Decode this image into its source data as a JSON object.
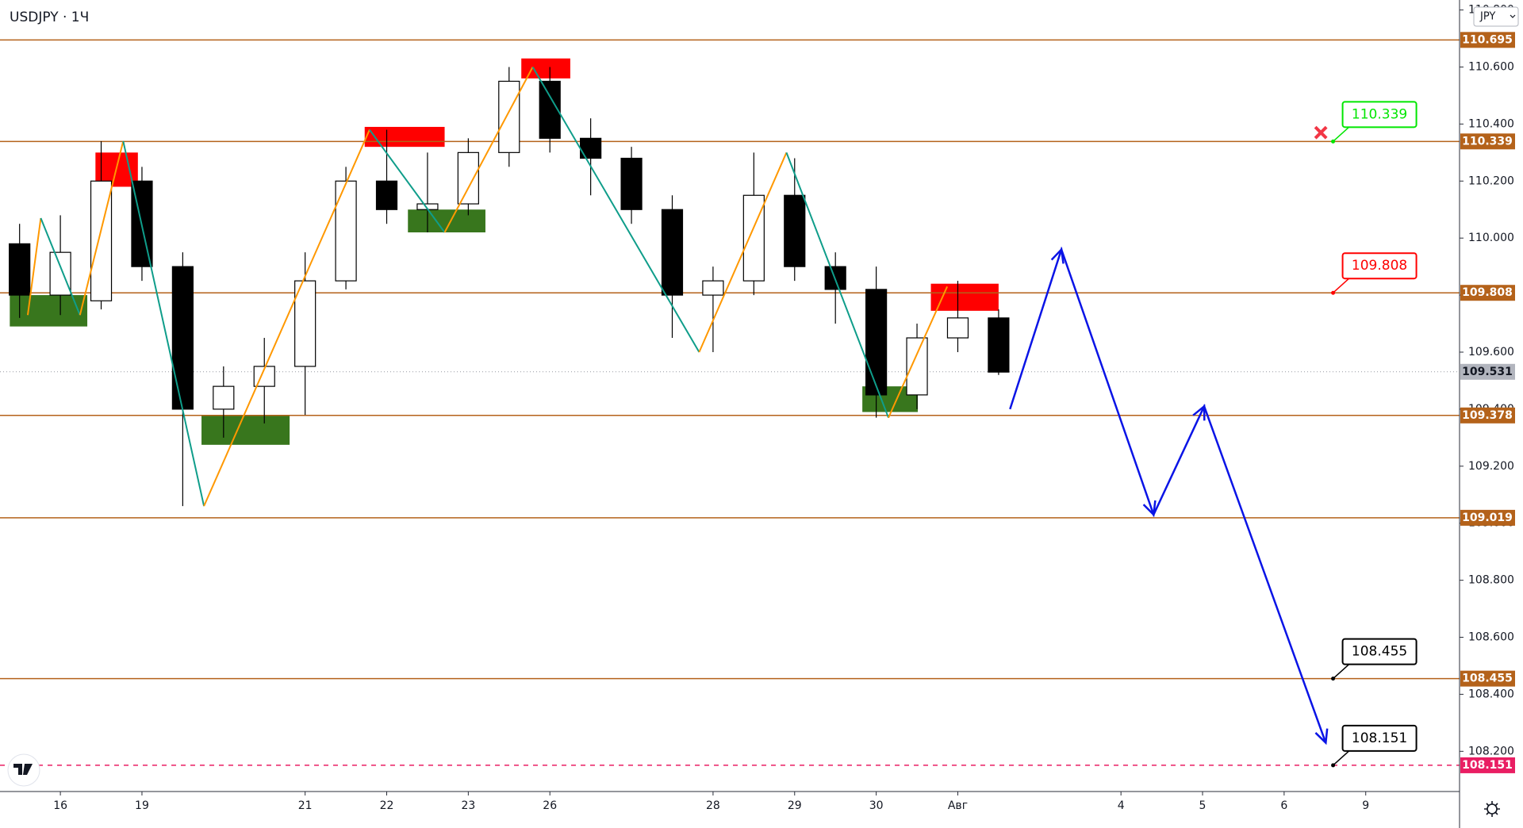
{
  "chart_data": {
    "type": "candlestick",
    "title": "USDJPY · 1Ч",
    "currency": "JPY",
    "x": [
      -0.5,
      0,
      0.5,
      1,
      1.5,
      2,
      2.5,
      3,
      3.5,
      4,
      4.5,
      5,
      5.5,
      6,
      6.5,
      7,
      7.5,
      8,
      8.5,
      9,
      9.5,
      10,
      10.5,
      11,
      11.5
    ],
    "open": [
      109.98,
      109.8,
      109.78,
      110.2,
      109.9,
      109.4,
      109.48,
      109.55,
      109.85,
      110.2,
      110.1,
      110.12,
      110.3,
      110.55,
      110.35,
      110.28,
      110.1,
      109.8,
      109.85,
      110.15,
      109.9,
      109.82,
      109.45,
      109.65,
      109.72
    ],
    "high": [
      110.05,
      110.08,
      110.34,
      110.25,
      109.95,
      109.55,
      109.65,
      109.95,
      110.25,
      110.38,
      110.3,
      110.35,
      110.6,
      110.6,
      110.42,
      110.32,
      110.15,
      109.9,
      110.3,
      110.28,
      109.95,
      109.9,
      109.7,
      109.85,
      109.75
    ],
    "low": [
      109.72,
      109.73,
      109.75,
      109.85,
      109.06,
      109.3,
      109.35,
      109.38,
      109.82,
      110.05,
      110.02,
      110.08,
      110.25,
      110.3,
      110.15,
      110.05,
      109.65,
      109.6,
      109.8,
      109.85,
      109.7,
      109.37,
      109.4,
      109.6,
      109.52
    ],
    "close": [
      109.8,
      109.95,
      110.2,
      109.9,
      109.4,
      109.48,
      109.55,
      109.85,
      110.2,
      110.1,
      110.12,
      110.3,
      110.55,
      110.35,
      110.28,
      110.1,
      109.8,
      109.85,
      110.15,
      109.9,
      109.82,
      109.45,
      109.65,
      109.72,
      109.53
    ],
    "up_color": "#ffffff",
    "down_color": "#000000",
    "xlim": [
      -0.74,
      17.15
    ],
    "xticks": [
      {
        "value": 0,
        "label": "16"
      },
      {
        "value": 1,
        "label": "19"
      },
      {
        "value": 3,
        "label": "21"
      },
      {
        "value": 4,
        "label": "22"
      },
      {
        "value": 5,
        "label": "23"
      },
      {
        "value": 6,
        "label": "26"
      },
      {
        "value": 8,
        "label": "28"
      },
      {
        "value": 9,
        "label": "29"
      },
      {
        "value": 10,
        "label": "30"
      },
      {
        "value": 11,
        "label": "Авг"
      },
      {
        "value": 13,
        "label": "4"
      },
      {
        "value": 14,
        "label": "5"
      },
      {
        "value": 15,
        "label": "6"
      },
      {
        "value": 16,
        "label": "9"
      }
    ],
    "ylim": [
      108.059,
      110.835
    ],
    "yticks": [
      {
        "value": 108.2,
        "label": "108.200"
      },
      {
        "value": 108.4,
        "label": "108.400"
      },
      {
        "value": 108.6,
        "label": "108.600"
      },
      {
        "value": 108.8,
        "label": "108.800"
      },
      {
        "value": 109.0,
        "label": "109.000"
      },
      {
        "value": 109.2,
        "label": "109.200"
      },
      {
        "value": 109.4,
        "label": "109.400"
      },
      {
        "value": 109.6,
        "label": "109.600"
      },
      {
        "value": 109.8,
        "label": "109.800"
      },
      {
        "value": 110.0,
        "label": "110.000"
      },
      {
        "value": 110.2,
        "label": "110.200"
      },
      {
        "value": 110.4,
        "label": "110.400"
      },
      {
        "value": 110.6,
        "label": "110.600"
      },
      {
        "value": 110.8,
        "label": "110.800"
      }
    ],
    "levels": [
      {
        "value": 110.695,
        "color": "#b4621a",
        "dashed": false
      },
      {
        "value": 110.339,
        "color": "#b4621a",
        "dashed": false
      },
      {
        "value": 109.808,
        "color": "#b4621a",
        "dashed": false
      },
      {
        "value": 109.378,
        "color": "#b4621a",
        "dashed": false
      },
      {
        "value": 109.019,
        "color": "#b4621a",
        "dashed": false
      },
      {
        "value": 108.455,
        "color": "#b4621a",
        "dashed": false
      },
      {
        "value": 108.151,
        "color": "#e91e63",
        "dashed": true
      }
    ],
    "current_price": 109.531,
    "zones": [
      {
        "x": [
          0.43,
          0.95
        ],
        "y": [
          110.18,
          110.3
        ],
        "color": "#ff0000"
      },
      {
        "x": [
          3.73,
          4.71
        ],
        "y": [
          110.32,
          110.39
        ],
        "color": "#ff0000"
      },
      {
        "x": [
          5.65,
          6.25
        ],
        "y": [
          110.56,
          110.63
        ],
        "color": "#ff0000"
      },
      {
        "x": [
          10.67,
          11.5
        ],
        "y": [
          109.745,
          109.84
        ],
        "color": "#ff0000"
      },
      {
        "x": [
          -0.62,
          0.33
        ],
        "y": [
          109.69,
          109.8
        ],
        "color": "#38761d"
      },
      {
        "x": [
          1.73,
          2.81
        ],
        "y": [
          109.275,
          109.38
        ],
        "color": "#38761d"
      },
      {
        "x": [
          4.26,
          5.21
        ],
        "y": [
          110.02,
          110.1
        ],
        "color": "#38761d"
      },
      {
        "x": [
          9.83,
          10.51
        ],
        "y": [
          109.39,
          109.48
        ],
        "color": "#38761d"
      }
    ],
    "zigzag": {
      "x": [
        -0.4,
        -0.24,
        0.24,
        0.77,
        1.76,
        3.79,
        4.71,
        5.79,
        7.83,
        8.9,
        10.15,
        10.87
      ],
      "values": [
        109.73,
        110.07,
        109.73,
        110.34,
        109.06,
        110.38,
        110.02,
        110.6,
        109.6,
        110.3,
        109.37,
        109.83
      ],
      "up_color": "#ff9800",
      "down_color": "#0f9d8a"
    },
    "projection": {
      "x": [
        11.64,
        12.27,
        13.4,
        14.02,
        15.51
      ],
      "values": [
        109.4,
        109.96,
        109.03,
        109.41,
        108.23
      ],
      "color": "#0a14e6"
    },
    "callouts": [
      {
        "x": 15.6,
        "value": 110.339,
        "color": "#00e600"
      },
      {
        "x": 15.6,
        "value": 109.808,
        "color": "#ff0000"
      },
      {
        "x": 15.6,
        "value": 108.455,
        "color": "#000000"
      },
      {
        "x": 15.6,
        "value": 108.151,
        "color": "#000000"
      }
    ],
    "marker": {
      "x": 15.45,
      "y": 110.37,
      "color": "#f23645"
    }
  }
}
